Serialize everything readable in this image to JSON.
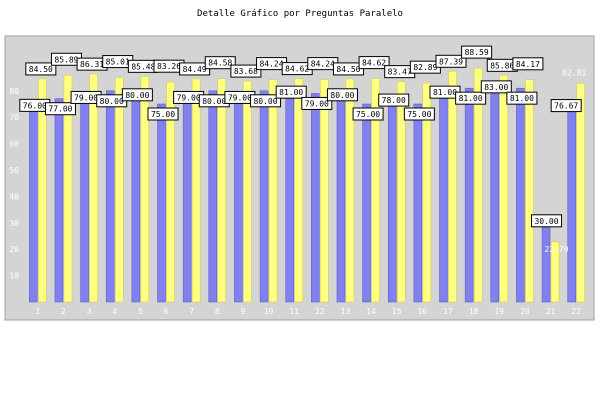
{
  "chart_data": {
    "type": "bar",
    "title": "Detalle Gráfico por Preguntas Paralelo",
    "categories": [
      "1",
      "2",
      "3",
      "4",
      "5",
      "6",
      "7",
      "8",
      "9",
      "10",
      "11",
      "12",
      "13",
      "14",
      "15",
      "16",
      "17",
      "18",
      "19",
      "20",
      "21",
      "22"
    ],
    "series": [
      {
        "values": [
          76.0,
          77.0,
          79.0,
          80.0,
          80.0,
          75.0,
          79.0,
          80.0,
          79.0,
          80.0,
          81.0,
          79.0,
          80.0,
          75.0,
          78.0,
          75.0,
          81.0,
          81.0,
          83.0,
          81.0,
          30.0,
          76.67
        ]
      },
      {
        "values": [
          84.5,
          85.89,
          86.31,
          85.01,
          85.48,
          83.26,
          84.49,
          84.58,
          83.68,
          84.24,
          84.62,
          84.24,
          84.5,
          84.62,
          83.47,
          82.89,
          87.39,
          88.59,
          85.86,
          84.17,
          22.79,
          82.81
        ]
      }
    ],
    "labels_a": [
      "76.00",
      "77.00",
      "79.00",
      "80.00",
      "80.00",
      "75.00",
      "79.00",
      "80.00",
      "79.00",
      "80.00",
      "81.00",
      "79.00",
      "80.00",
      "75.00",
      "78.00",
      "75.00",
      "81.00",
      "81.00",
      "83.00",
      "81.00",
      "30.00",
      "76.67"
    ],
    "labels_b": [
      "84.50",
      "85.89",
      "86.31",
      "85.01",
      "85.48",
      "83.26",
      "84.49",
      "84.58",
      "83.68",
      "84.24",
      "84.62",
      "84.24",
      "84.50",
      "84.62",
      "83.47",
      "82.89",
      "87.39",
      "88.59",
      "85.86",
      "84.17",
      "22.79",
      "82.81"
    ],
    "yticks": [
      "10",
      "20",
      "30",
      "40",
      "50",
      "60",
      "70",
      "80"
    ],
    "ylim": [
      0,
      100
    ],
    "grid": false,
    "colors": {
      "series_a": "#8080f0",
      "series_a_dark": "#5555c0",
      "series_b": "#ffff80",
      "series_b_dark": "#c8c850",
      "plot_bg": "#d4d4d4",
      "axis_text": "#ffffff",
      "label_bg": "#ffffff",
      "label_border": "#000000"
    }
  }
}
